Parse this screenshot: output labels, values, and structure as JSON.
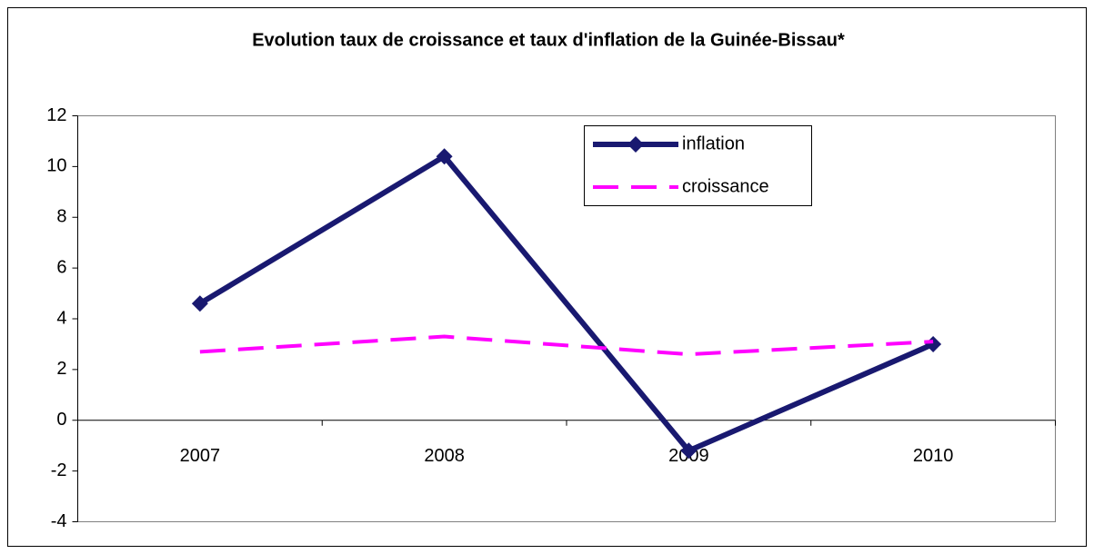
{
  "chart_data": {
    "type": "line",
    "title": "Evolution taux de croissance et taux d'inflation de la Guinée-Bissau*",
    "categories": [
      "2007",
      "2008",
      "2009",
      "2010"
    ],
    "series": [
      {
        "name": "inflation",
        "color": "#191970",
        "values": [
          4.6,
          10.4,
          -1.2,
          3.0
        ]
      },
      {
        "name": "croissance",
        "color": "#ff00ff",
        "values": [
          2.7,
          3.3,
          2.6,
          3.1
        ]
      }
    ],
    "ylim": [
      -4,
      12
    ],
    "yticks": [
      -4,
      -2,
      0,
      2,
      4,
      6,
      8,
      10,
      12
    ],
    "grid": false
  }
}
